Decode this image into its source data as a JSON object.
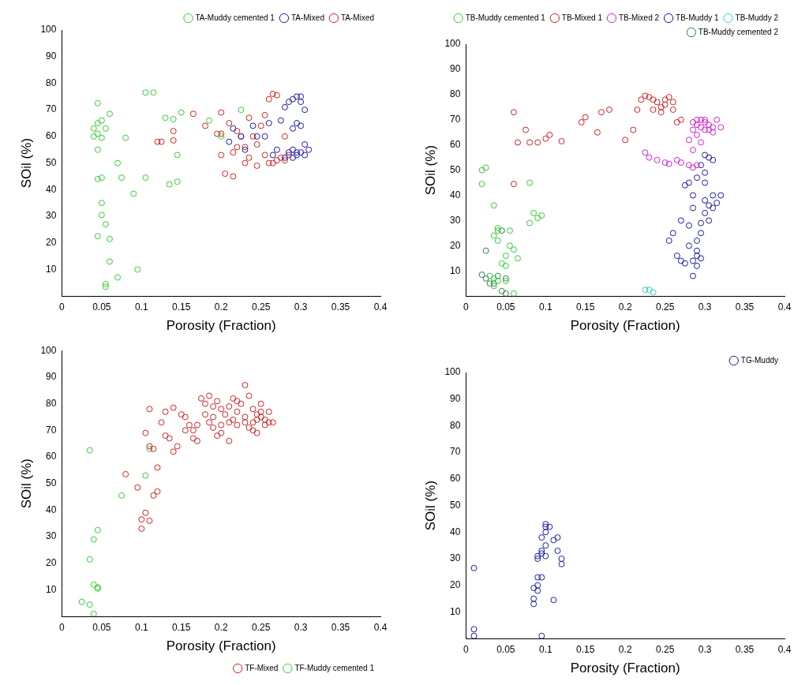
{
  "chart_data": [
    {
      "type": "scatter",
      "x_label": "Porosity (Fraction)",
      "y_label": "SOil (%)",
      "xlim": [
        0,
        0.4
      ],
      "ylim": [
        0,
        100
      ],
      "xticks": [
        0,
        0.05,
        0.1,
        0.15,
        0.2,
        0.25,
        0.3,
        0.35,
        0.4
      ],
      "yticks": [
        10,
        20,
        30,
        40,
        50,
        60,
        70,
        80,
        90,
        100
      ],
      "legend": "upper right",
      "grid": false,
      "marker": "circle",
      "series": [
        {
          "name": "TA-Muddy cemented 1",
          "color": "#33cc33",
          "x": [
            0.04,
            0.045,
            0.04,
            0.045,
            0.05,
            0.045,
            0.06,
            0.055,
            0.05,
            0.045,
            0.045,
            0.05,
            0.05,
            0.05,
            0.055,
            0.045,
            0.06,
            0.06,
            0.055,
            0.055,
            0.07,
            0.07,
            0.075,
            0.08,
            0.09,
            0.095,
            0.105,
            0.105,
            0.115,
            0.13,
            0.135,
            0.145,
            0.145,
            0.14,
            0.15,
            0.185,
            0.2,
            0.225
          ],
          "values": [
            60,
            61,
            63,
            65,
            66,
            72.5,
            68.5,
            63,
            59.5,
            55,
            44,
            44.5,
            35,
            30.5,
            27,
            22.5,
            21.5,
            13,
            4.5,
            3.5,
            7,
            50,
            44.5,
            59.5,
            38.5,
            10,
            44.5,
            76.5,
            76.5,
            67,
            42,
            43,
            53,
            66.5,
            69,
            66,
            60,
            70
          ]
        },
        {
          "name": "TA-Mixed",
          "color": "#1a1aa0",
          "x": [
            0.21,
            0.215,
            0.225,
            0.23,
            0.24,
            0.245,
            0.255,
            0.26,
            0.265,
            0.27,
            0.275,
            0.28,
            0.285,
            0.29,
            0.295,
            0.3,
            0.3,
            0.305,
            0.285,
            0.29,
            0.295,
            0.3,
            0.305,
            0.31,
            0.305,
            0.295,
            0.29,
            0.295,
            0.3,
            0.28,
            0.29
          ],
          "values": [
            58,
            63,
            60,
            55,
            64,
            60,
            60,
            65,
            53,
            55,
            66,
            71,
            73,
            74,
            75,
            75,
            73,
            70,
            54,
            55,
            54,
            54,
            53,
            55,
            57,
            53,
            63,
            65,
            64,
            52,
            52
          ]
        },
        {
          "name": "TA-Mixed",
          "color": "#cc2222",
          "x": [
            0.12,
            0.125,
            0.14,
            0.14,
            0.165,
            0.18,
            0.195,
            0.2,
            0.2,
            0.205,
            0.215,
            0.215,
            0.22,
            0.225,
            0.23,
            0.235,
            0.235,
            0.245,
            0.245,
            0.25,
            0.255,
            0.255,
            0.26,
            0.265,
            0.27,
            0.265,
            0.27,
            0.275,
            0.28,
            0.28,
            0.285,
            0.2,
            0.21,
            0.22,
            0.23,
            0.24,
            0.26
          ],
          "values": [
            58,
            58,
            58.5,
            62,
            68.5,
            64,
            61,
            69,
            53,
            46,
            45,
            54,
            62,
            60,
            56,
            52,
            67,
            49,
            57,
            64,
            53,
            68,
            74,
            76,
            75.5,
            50,
            51,
            52,
            51,
            60,
            53,
            61,
            65,
            56,
            50,
            60,
            50
          ]
        }
      ]
    },
    {
      "type": "scatter",
      "x_label": "Porosity (Fraction)",
      "y_label": "SOil (%)",
      "xlim": [
        0,
        0.4
      ],
      "ylim": [
        0,
        100
      ],
      "xticks": [
        0,
        0.05,
        0.1,
        0.15,
        0.2,
        0.25,
        0.3,
        0.35,
        0.4
      ],
      "yticks": [
        10,
        20,
        30,
        40,
        50,
        60,
        70,
        80,
        90,
        100
      ],
      "legend": "upper right",
      "grid": false,
      "marker": "circle",
      "series": [
        {
          "name": "TB-Muddy cemented 1",
          "color": "#33cc33",
          "x": [
            0.02,
            0.025,
            0.02,
            0.035,
            0.04,
            0.04,
            0.035,
            0.04,
            0.03,
            0.035,
            0.04,
            0.035,
            0.045,
            0.05,
            0.05,
            0.055,
            0.06,
            0.065,
            0.055,
            0.06,
            0.08,
            0.085,
            0.09,
            0.095,
            0.08,
            0.05
          ],
          "values": [
            50,
            51,
            44.5,
            36,
            27,
            26,
            24,
            22,
            8,
            7,
            6,
            4,
            13,
            16,
            12,
            20,
            18.5,
            15,
            26,
            1,
            45,
            33,
            31,
            32,
            29,
            6
          ]
        },
        {
          "name": "TB-Mixed 1",
          "color": "#cc2222",
          "x": [
            0.06,
            0.065,
            0.075,
            0.08,
            0.09,
            0.1,
            0.105,
            0.12,
            0.145,
            0.15,
            0.165,
            0.17,
            0.18,
            0.2,
            0.21,
            0.215,
            0.22,
            0.225,
            0.23,
            0.235,
            0.24,
            0.245,
            0.25,
            0.255,
            0.26,
            0.265,
            0.26,
            0.235,
            0.245,
            0.25,
            0.27,
            0.06
          ],
          "values": [
            73,
            61,
            66,
            61,
            61,
            62.5,
            64,
            61.5,
            69,
            71,
            65,
            73,
            74,
            62,
            66,
            74,
            78,
            79.5,
            79,
            78,
            77,
            75,
            76,
            79,
            74,
            69,
            77,
            74,
            73,
            78,
            70,
            44.5
          ]
        },
        {
          "name": "TB-Mixed 2",
          "color": "#cc22cc",
          "x": [
            0.225,
            0.23,
            0.24,
            0.25,
            0.255,
            0.265,
            0.27,
            0.28,
            0.285,
            0.29,
            0.285,
            0.28,
            0.285,
            0.29,
            0.295,
            0.3,
            0.305,
            0.31,
            0.32,
            0.29,
            0.295,
            0.3,
            0.305,
            0.31,
            0.3,
            0.295,
            0.315,
            0.29,
            0.285
          ],
          "values": [
            57,
            55,
            54,
            53,
            52.5,
            54,
            53,
            52,
            51,
            52,
            58,
            62,
            66,
            68,
            70,
            69,
            68,
            67,
            67,
            64,
            67,
            70,
            66,
            65,
            66,
            61,
            70,
            70,
            69
          ]
        },
        {
          "name": "TB-Muddy 1",
          "color": "#1a1aa0",
          "x": [
            0.255,
            0.26,
            0.265,
            0.27,
            0.275,
            0.27,
            0.275,
            0.28,
            0.28,
            0.285,
            0.285,
            0.29,
            0.29,
            0.295,
            0.285,
            0.29,
            0.295,
            0.3,
            0.3,
            0.305,
            0.31,
            0.305,
            0.31,
            0.315,
            0.32,
            0.3,
            0.305,
            0.295,
            0.3,
            0.29,
            0.285,
            0.295,
            0.29,
            0.28,
            0.31,
            0.3
          ],
          "values": [
            22,
            25,
            16,
            14,
            13,
            30,
            44,
            45,
            28,
            35,
            14,
            12,
            16,
            15,
            8,
            22,
            25,
            33,
            38,
            36,
            40,
            30,
            35,
            37,
            40,
            49,
            55,
            52,
            56,
            47,
            40,
            29,
            18,
            20,
            54,
            45
          ]
        },
        {
          "name": "TB-Muddy 2",
          "color": "#33cccc",
          "x": [
            0.225,
            0.23,
            0.235
          ],
          "values": [
            2.5,
            2.5,
            1.5
          ]
        },
        {
          "name": "TB-Muddy cemented 2",
          "color": "#2e7d4f",
          "x": [
            0.02,
            0.025,
            0.03,
            0.035,
            0.04,
            0.045,
            0.05,
            0.025,
            0.045,
            0.05
          ],
          "values": [
            8.5,
            7,
            5,
            5,
            8,
            2,
            1,
            18,
            26,
            7
          ]
        }
      ]
    },
    {
      "type": "scatter",
      "x_label": "Porosity (Fraction)",
      "y_label": "SOil (%)",
      "xlim": [
        0,
        0.4
      ],
      "ylim": [
        0,
        100
      ],
      "xticks": [
        0,
        0.05,
        0.1,
        0.15,
        0.2,
        0.25,
        0.3,
        0.35,
        0.4
      ],
      "yticks": [
        10,
        20,
        30,
        40,
        50,
        60,
        70,
        80,
        90,
        100
      ],
      "legend": "lower right",
      "grid": false,
      "marker": "circle",
      "series": [
        {
          "name": "TF-Mixed",
          "color": "#cc2222",
          "x": [
            0.08,
            0.095,
            0.1,
            0.1,
            0.105,
            0.105,
            0.11,
            0.11,
            0.115,
            0.11,
            0.115,
            0.12,
            0.12,
            0.125,
            0.13,
            0.13,
            0.135,
            0.14,
            0.14,
            0.145,
            0.15,
            0.155,
            0.165,
            0.165,
            0.17,
            0.175,
            0.18,
            0.18,
            0.185,
            0.185,
            0.19,
            0.19,
            0.195,
            0.195,
            0.2,
            0.2,
            0.205,
            0.21,
            0.21,
            0.215,
            0.215,
            0.22,
            0.22,
            0.225,
            0.23,
            0.23,
            0.235,
            0.235,
            0.24,
            0.24,
            0.245,
            0.245,
            0.25,
            0.25,
            0.255,
            0.255,
            0.26,
            0.26,
            0.265,
            0.245,
            0.25,
            0.24,
            0.17,
            0.16,
            0.155,
            0.2,
            0.19,
            0.21,
            0.22,
            0.23
          ],
          "values": [
            53.5,
            48.5,
            36.5,
            33,
            39,
            69,
            78,
            64,
            63,
            36,
            45.5,
            47,
            56,
            73,
            77,
            68,
            67,
            78.5,
            62,
            64,
            76,
            75,
            70,
            67,
            72,
            82,
            80,
            76,
            83,
            73,
            79,
            71,
            68,
            81,
            78,
            72,
            76,
            79,
            66,
            82,
            74,
            77,
            72,
            80,
            87,
            75,
            71,
            83,
            78,
            73,
            69,
            76,
            75,
            80,
            74,
            72,
            77,
            73,
            73,
            74,
            77,
            70,
            66,
            72,
            70,
            69,
            75,
            73,
            81,
            73
          ]
        },
        {
          "name": "TF-Muddy cemented 1",
          "color": "#33cc33",
          "x": [
            0.035,
            0.035,
            0.04,
            0.04,
            0.045,
            0.045,
            0.045,
            0.025,
            0.035,
            0.04,
            0.075,
            0.105,
            0.11
          ],
          "values": [
            62.5,
            21.5,
            29,
            12,
            11,
            10.5,
            32.5,
            5.5,
            4.5,
            1,
            45.5,
            53,
            63
          ]
        }
      ]
    },
    {
      "type": "scatter",
      "x_label": "Porosity (Fraction)",
      "y_label": "SOil (%)",
      "xlim": [
        0,
        0.4
      ],
      "ylim": [
        0,
        100
      ],
      "xticks": [
        0,
        0.05,
        0.1,
        0.15,
        0.2,
        0.25,
        0.3,
        0.35,
        0.4
      ],
      "yticks": [
        10,
        20,
        30,
        40,
        50,
        60,
        70,
        80,
        90,
        100
      ],
      "legend": "upper right",
      "grid": false,
      "marker": "circle",
      "series": [
        {
          "name": "TG-Muddy",
          "color": "#1a1aa0",
          "x": [
            0.01,
            0.01,
            0.01,
            0.085,
            0.085,
            0.085,
            0.09,
            0.09,
            0.09,
            0.09,
            0.095,
            0.09,
            0.095,
            0.1,
            0.095,
            0.1,
            0.1,
            0.1,
            0.105,
            0.11,
            0.11,
            0.115,
            0.115,
            0.12,
            0.12,
            0.095,
            0.095,
            0.1
          ],
          "values": [
            26.5,
            1,
            3.5,
            15,
            19,
            13,
            18,
            20,
            23,
            31,
            33,
            30,
            32,
            35,
            38,
            40,
            42,
            43,
            42,
            37,
            14.5,
            38,
            33,
            30,
            28,
            1,
            23,
            31
          ]
        }
      ]
    }
  ]
}
